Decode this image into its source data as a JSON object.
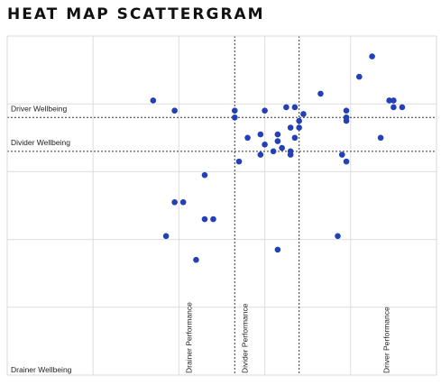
{
  "title": "HEAT MAP SCATTERGRAM",
  "chart_data": {
    "type": "scatter",
    "title": "HEAT MAP SCATTERGRAM",
    "xlim": [
      0,
      10
    ],
    "ylim": [
      0,
      10
    ],
    "grid": true,
    "x_tick_labels": [
      {
        "value": 4.3,
        "label": "Drainer Performance"
      },
      {
        "value": 5.6,
        "label": "Divider Performance"
      },
      {
        "value": 8.9,
        "label": "Driver Performance"
      }
    ],
    "y_tick_labels": [
      {
        "value": 0,
        "label": "Drainer Wellbeing"
      },
      {
        "value": 6.7,
        "label": "Divider Wellbeing"
      },
      {
        "value": 7.7,
        "label": "Driver Wellbeing"
      }
    ],
    "x_reference_lines": [
      5.3,
      6.8
    ],
    "y_reference_lines": [
      7.6,
      6.6
    ],
    "point_color": "#2340b8",
    "points": [
      [
        8.5,
        9.4
      ],
      [
        8.2,
        8.8
      ],
      [
        7.3,
        8.3
      ],
      [
        8.9,
        8.1
      ],
      [
        9.0,
        8.1
      ],
      [
        9.0,
        7.9
      ],
      [
        9.2,
        7.9
      ],
      [
        3.4,
        8.1
      ],
      [
        3.9,
        7.8
      ],
      [
        5.3,
        7.8
      ],
      [
        6.5,
        7.9
      ],
      [
        6.7,
        7.9
      ],
      [
        5.3,
        7.6
      ],
      [
        6.0,
        7.8
      ],
      [
        6.9,
        7.7
      ],
      [
        7.9,
        7.8
      ],
      [
        7.9,
        7.6
      ],
      [
        6.8,
        7.5
      ],
      [
        6.6,
        7.3
      ],
      [
        6.8,
        7.3
      ],
      [
        7.9,
        7.5
      ],
      [
        5.6,
        7.0
      ],
      [
        5.9,
        7.1
      ],
      [
        6.3,
        7.1
      ],
      [
        6.3,
        6.9
      ],
      [
        6.0,
        6.8
      ],
      [
        6.7,
        7.0
      ],
      [
        8.7,
        7.0
      ],
      [
        6.2,
        6.6
      ],
      [
        6.4,
        6.7
      ],
      [
        6.6,
        6.6
      ],
      [
        5.9,
        6.5
      ],
      [
        6.6,
        6.5
      ],
      [
        7.8,
        6.5
      ],
      [
        5.4,
        6.3
      ],
      [
        7.9,
        6.3
      ],
      [
        4.6,
        5.9
      ],
      [
        3.9,
        5.1
      ],
      [
        4.1,
        5.1
      ],
      [
        4.6,
        4.6
      ],
      [
        4.8,
        4.6
      ],
      [
        3.7,
        4.1
      ],
      [
        7.7,
        4.1
      ],
      [
        6.3,
        3.7
      ],
      [
        4.4,
        3.4
      ]
    ]
  }
}
